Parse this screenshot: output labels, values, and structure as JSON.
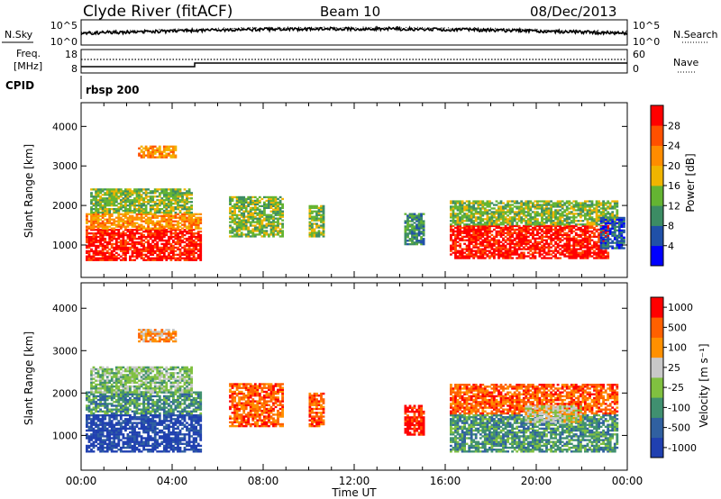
{
  "header": {
    "station": "Clyde River (fitACF)",
    "beam": "Beam 10",
    "date": "08/Dec/2013"
  },
  "noise_panel": {
    "left_label": "N.Sky",
    "left_ticks": [
      "10^5",
      "10^0"
    ],
    "right_label": "N.Search",
    "right_ticks": [
      "10^5",
      "10^0"
    ]
  },
  "freq_panel": {
    "left_label_line1": "Freq.",
    "left_label_line2": "[MHz]",
    "left_ticks": [
      "18",
      "8"
    ],
    "right_label": "Nave",
    "right_ticks": [
      "60",
      "0"
    ]
  },
  "cpid": {
    "label": "CPID",
    "value": "rbsp 200"
  },
  "colors": {
    "power_scale": [
      "#0000ff",
      "#2050a8",
      "#3c8c64",
      "#64b432",
      "#f0b400",
      "#ff8c00",
      "#ff5000",
      "#ff0000"
    ],
    "velocity_scale": [
      "#2040b0",
      "#3060a0",
      "#409070",
      "#80c040",
      "#c8c8c8",
      "#ff9000",
      "#ff6000",
      "#ff0000"
    ]
  },
  "chart_data": [
    {
      "type": "heatmap",
      "name": "power",
      "ylabel": "Slant Range [km]",
      "yticks": [
        "1000",
        "2000",
        "3000",
        "4000"
      ],
      "ylim": [
        180,
        4600
      ],
      "xticks": [
        "00:00",
        "04:00",
        "08:00",
        "12:00",
        "16:00",
        "20:00",
        "00:00"
      ],
      "colorbar_label": "Power [dB]",
      "colorbar_ticks": [
        "4",
        "8",
        "12",
        "16",
        "20",
        "24",
        "28"
      ],
      "regions": [
        {
          "t0": 0.2,
          "t1": 5.2,
          "r0": 600,
          "r1": 1400,
          "level": 7
        },
        {
          "t0": 0.2,
          "t1": 5.2,
          "r0": 1400,
          "r1": 1800,
          "level": 5
        },
        {
          "t0": 0.4,
          "t1": 4.8,
          "r0": 1800,
          "r1": 2400,
          "level": 3
        },
        {
          "t0": 2.5,
          "t1": 4.2,
          "r0": 3200,
          "r1": 3500,
          "level": 5
        },
        {
          "t0": 6.5,
          "t1": 8.8,
          "r0": 1200,
          "r1": 2200,
          "level": 3
        },
        {
          "t0": 10.0,
          "t1": 10.6,
          "r0": 1200,
          "r1": 2000,
          "level": 3
        },
        {
          "t0": 14.2,
          "t1": 15.0,
          "r0": 1000,
          "r1": 1800,
          "level": 2
        },
        {
          "t0": 16.2,
          "t1": 23.2,
          "r0": 650,
          "r1": 1500,
          "level": 7
        },
        {
          "t0": 16.2,
          "t1": 23.6,
          "r0": 1500,
          "r1": 2100,
          "level": 3
        },
        {
          "t0": 22.8,
          "t1": 23.9,
          "r0": 900,
          "r1": 1700,
          "level": 1
        }
      ]
    },
    {
      "type": "heatmap",
      "name": "velocity",
      "ylabel": "Slant Range [km]",
      "yticks": [
        "1000",
        "2000",
        "3000",
        "4000"
      ],
      "ylim": [
        180,
        4600
      ],
      "xticks": [
        "00:00",
        "04:00",
        "08:00",
        "12:00",
        "16:00",
        "20:00",
        "00:00"
      ],
      "xlabel": "Time UT",
      "colorbar_label": "Velocity [m s⁻¹]",
      "colorbar_ticks": [
        "1000",
        "500",
        "100",
        "25",
        "-25",
        "-100",
        "-500",
        "-1000"
      ],
      "regions": [
        {
          "t0": 0.2,
          "t1": 5.2,
          "r0": 600,
          "r1": 1500,
          "level": 0
        },
        {
          "t0": 0.2,
          "t1": 5.2,
          "r0": 1500,
          "r1": 2000,
          "level": 2
        },
        {
          "t0": 0.4,
          "t1": 4.8,
          "r0": 2000,
          "r1": 2600,
          "level": 3
        },
        {
          "t0": 2.5,
          "t1": 4.2,
          "r0": 3200,
          "r1": 3500,
          "level": 5
        },
        {
          "t0": 6.5,
          "t1": 8.8,
          "r0": 1200,
          "r1": 2200,
          "level": 6
        },
        {
          "t0": 10.0,
          "t1": 10.6,
          "r0": 1200,
          "r1": 2000,
          "level": 6
        },
        {
          "t0": 14.2,
          "t1": 15.0,
          "r0": 1000,
          "r1": 1700,
          "level": 7
        },
        {
          "t0": 16.2,
          "t1": 23.6,
          "r0": 600,
          "r1": 1500,
          "level": 2
        },
        {
          "t0": 16.2,
          "t1": 23.6,
          "r0": 1500,
          "r1": 2200,
          "level": 6
        },
        {
          "t0": 19.5,
          "t1": 22.0,
          "r0": 1300,
          "r1": 1700,
          "level": 4
        }
      ]
    }
  ]
}
